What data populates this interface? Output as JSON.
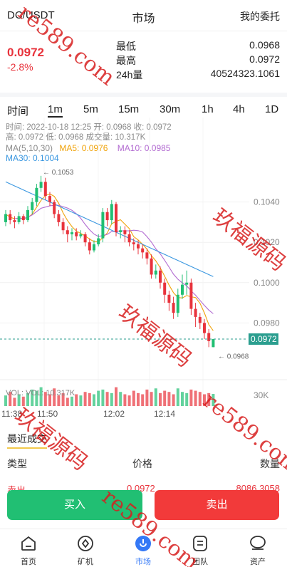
{
  "header": {
    "pair": "DC/USDT",
    "title": "市场",
    "orders_label": "我的委托"
  },
  "summary": {
    "price": "0.0972",
    "change": "-2.8%",
    "low_label": "最低",
    "low_value": "0.0968",
    "high_label": "最高",
    "high_value": "0.0972",
    "vol_label": "24h量",
    "vol_value": "40524323.1061"
  },
  "timeframes": [
    "时间",
    "1m",
    "5m",
    "15m",
    "30m",
    "1h",
    "4h",
    "1D"
  ],
  "active_timeframe": "1m",
  "candle_info": {
    "line1": "时间: 2022-10-18 12:25   开: 0.0968   收: 0.0972",
    "line2": "高: 0.0972    低: 0.0968    成交量: 10.317K"
  },
  "ma": {
    "label": "MA(5,10,30)",
    "ma5": "MA5: 0.0976",
    "ma10": "MA10: 0.0985",
    "ma30": "MA30: 0.1004"
  },
  "colors": {
    "up": "#21bf73",
    "down": "#e8333c",
    "ma5": "#f0a30a",
    "ma10": "#b26bd1",
    "ma30": "#3a97e0",
    "current_tag": "#2b9e8f"
  },
  "chart_data": {
    "type": "candlestick",
    "ylim": [
      0.096,
      0.106
    ],
    "y_ticks": [
      "0.1040",
      "0.1020",
      "0.1000",
      "0.0980"
    ],
    "current_price": "0.0972",
    "max_marker": "0.1053",
    "min_marker": "0.0968",
    "volume_label": "VOL: VOL: 10.317K",
    "volume_axis": "30K",
    "x_ticks": [
      "11:38",
      "11:50",
      "12:02",
      "12:14"
    ],
    "candles": [
      [
        0.103,
        0.1034,
        0.1028,
        0.1036
      ],
      [
        0.1034,
        0.1031,
        0.1029,
        0.1036
      ],
      [
        0.1031,
        0.103,
        0.1027,
        0.1033
      ],
      [
        0.103,
        0.1033,
        0.1029,
        0.1035
      ],
      [
        0.1033,
        0.1031,
        0.1029,
        0.1034
      ],
      [
        0.1031,
        0.1036,
        0.103,
        0.1038
      ],
      [
        0.1036,
        0.104,
        0.1034,
        0.1042
      ],
      [
        0.104,
        0.1047,
        0.1038,
        0.1049
      ],
      [
        0.1047,
        0.105,
        0.1045,
        0.1053
      ],
      [
        0.105,
        0.1043,
        0.1041,
        0.1052
      ],
      [
        0.1043,
        0.104,
        0.1038,
        0.1045
      ],
      [
        0.104,
        0.1034,
        0.1032,
        0.1041
      ],
      [
        0.1034,
        0.103,
        0.1028,
        0.1036
      ],
      [
        0.103,
        0.1026,
        0.1024,
        0.1032
      ],
      [
        0.1026,
        0.1024,
        0.102,
        0.1028
      ],
      [
        0.1024,
        0.1025,
        0.1021,
        0.1027
      ],
      [
        0.1025,
        0.1023,
        0.1021,
        0.1027
      ],
      [
        0.1023,
        0.1024,
        0.1022,
        0.1026
      ],
      [
        0.1024,
        0.102,
        0.1018,
        0.1025
      ],
      [
        0.102,
        0.1016,
        0.1014,
        0.1022
      ],
      [
        0.1016,
        0.1019,
        0.1015,
        0.1021
      ],
      [
        0.1019,
        0.1022,
        0.1018,
        0.1024
      ],
      [
        0.1022,
        0.1035,
        0.102,
        0.1037
      ],
      [
        0.1035,
        0.1031,
        0.1028,
        0.1037
      ],
      [
        0.1031,
        0.1039,
        0.1029,
        0.1041
      ],
      [
        0.1039,
        0.1025,
        0.1023,
        0.104
      ],
      [
        0.1025,
        0.1026,
        0.1022,
        0.1028
      ],
      [
        0.1026,
        0.1024,
        0.102,
        0.1028
      ],
      [
        0.1024,
        0.102,
        0.1018,
        0.1026
      ],
      [
        0.102,
        0.1019,
        0.1016,
        0.1022
      ],
      [
        0.1019,
        0.1017,
        0.1014,
        0.1021
      ],
      [
        0.1017,
        0.1015,
        0.1012,
        0.1019
      ],
      [
        0.1015,
        0.1012,
        0.1009,
        0.1017
      ],
      [
        0.1012,
        0.1004,
        0.1002,
        0.1014
      ],
      [
        0.1004,
        0.1006,
        0.1002,
        0.1009
      ],
      [
        0.1006,
        0.1,
        0.0997,
        0.1008
      ],
      [
        0.1,
        0.0994,
        0.099,
        0.1002
      ],
      [
        0.0994,
        0.099,
        0.0986,
        0.0996
      ],
      [
        0.099,
        0.0985,
        0.0982,
        0.0993
      ],
      [
        0.0985,
        0.0994,
        0.0983,
        0.0997
      ],
      [
        0.0994,
        0.0999,
        0.0992,
        0.1004
      ],
      [
        0.0999,
        0.1,
        0.0994,
        0.1006
      ],
      [
        0.1,
        0.0987,
        0.0984,
        0.1002
      ],
      [
        0.0987,
        0.0983,
        0.0978,
        0.099
      ],
      [
        0.0983,
        0.098,
        0.0977,
        0.0985
      ],
      [
        0.098,
        0.0975,
        0.0972,
        0.0982
      ],
      [
        0.0975,
        0.0971,
        0.0968,
        0.0977
      ],
      [
        0.0968,
        0.0972,
        0.0968,
        0.0972
      ]
    ],
    "volumes": [
      9,
      12,
      7,
      10,
      8,
      11,
      14,
      13,
      16,
      12,
      10,
      15,
      9,
      11,
      7,
      8,
      10,
      9,
      12,
      11,
      10,
      13,
      14,
      12,
      11,
      16,
      12,
      10,
      9,
      13,
      11,
      10,
      14,
      12,
      15,
      11,
      13,
      12,
      10,
      15,
      12,
      11,
      14,
      13,
      12,
      10,
      11,
      10.3
    ]
  },
  "trades": {
    "tab": "最近成交",
    "col_type": "类型",
    "col_price": "价格",
    "col_qty": "数量",
    "row_type": "卖出",
    "row_price": "0.0972",
    "row_qty": "8086.3058"
  },
  "actions": {
    "buy": "买入",
    "sell": "卖出"
  },
  "tabbar": [
    {
      "label": "首页",
      "icon": "home-icon"
    },
    {
      "label": "矿机",
      "icon": "miner-icon"
    },
    {
      "label": "市场",
      "icon": "market-icon"
    },
    {
      "label": "团队",
      "icon": "team-icon"
    },
    {
      "label": "资产",
      "icon": "assets-icon"
    }
  ],
  "watermarks": [
    "re589.com",
    "玖福源码",
    "re589.com",
    "玖福源码",
    "玖福源码",
    "re589.com"
  ]
}
